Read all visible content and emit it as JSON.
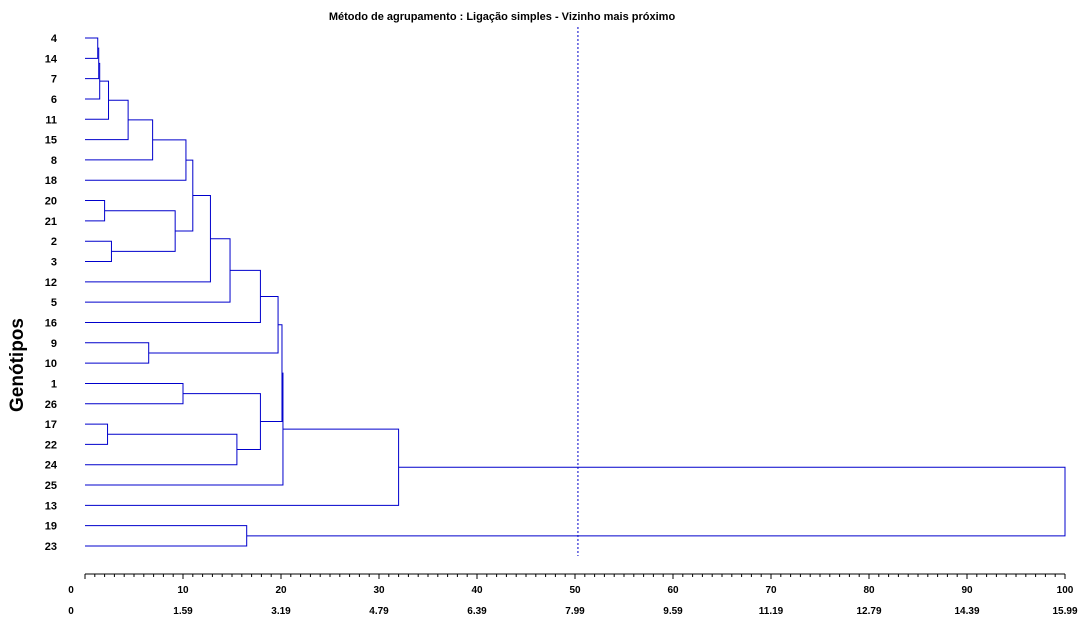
{
  "chart_data": {
    "type": "dendrogram",
    "title": "Método de agrupamento : Ligação simples - Vizinho mais próximo",
    "ylabel": "Genótipos",
    "xlim": [
      0,
      100
    ],
    "leaves": [
      "4",
      "14",
      "7",
      "6",
      "11",
      "15",
      "8",
      "18",
      "20",
      "21",
      "2",
      "3",
      "12",
      "5",
      "16",
      "9",
      "10",
      "1",
      "26",
      "17",
      "22",
      "24",
      "25",
      "13",
      "19",
      "23"
    ],
    "merges": [
      {
        "a": "4",
        "b": "14",
        "height": 1.3
      },
      {
        "a": "M1",
        "b": "7",
        "height": 1.4
      },
      {
        "a": "M2",
        "b": "6",
        "height": 1.5
      },
      {
        "a": "M3",
        "b": "11",
        "height": 2.4
      },
      {
        "a": "20",
        "b": "21",
        "height": 2.0
      },
      {
        "a": "2",
        "b": "3",
        "height": 2.7
      },
      {
        "a": "17",
        "b": "22",
        "height": 2.3
      },
      {
        "a": "M4",
        "b": "15",
        "height": 4.4
      },
      {
        "a": "9",
        "b": "10",
        "height": 6.5
      },
      {
        "a": "M8",
        "b": "8",
        "height": 6.9
      },
      {
        "a": "M5",
        "b": "M6",
        "height": 9.2
      },
      {
        "a": "M10",
        "b": "18",
        "height": 10.3
      },
      {
        "a": "M12",
        "b": "M11",
        "height": 11.0
      },
      {
        "a": "1",
        "b": "26",
        "height": 10.0
      },
      {
        "a": "M13",
        "b": "12",
        "height": 12.8
      },
      {
        "a": "M15",
        "b": "5",
        "height": 14.8
      },
      {
        "a": "M7",
        "b": "24",
        "height": 15.5
      },
      {
        "a": "19",
        "b": "23",
        "height": 16.5
      },
      {
        "a": "M16",
        "b": "16",
        "height": 17.9
      },
      {
        "a": "M14",
        "b": "M17",
        "height": 17.9
      },
      {
        "a": "M19",
        "b": "M9",
        "height": 19.7
      },
      {
        "a": "M21",
        "b": "M20",
        "height": 20.1
      },
      {
        "a": "M22",
        "b": "25",
        "height": 20.2
      },
      {
        "a": "M23",
        "b": "13",
        "height": 32.0
      },
      {
        "a": "M24",
        "b": "M18",
        "height": 100.0
      }
    ],
    "cutoff": 50.3,
    "top_axis_ticks": [
      "0",
      "10",
      "20",
      "30",
      "40",
      "50",
      "60",
      "70",
      "80",
      "90",
      "100"
    ],
    "bottom_axis_ticks": [
      "0",
      "1.59",
      "3.19",
      "4.79",
      "6.39",
      "7.99",
      "9.59",
      "11.19",
      "12.79",
      "14.39",
      "15.99"
    ],
    "colors": {
      "lines": "#0000cc",
      "cutoff": "#0000cc",
      "axis": "#000000"
    }
  }
}
